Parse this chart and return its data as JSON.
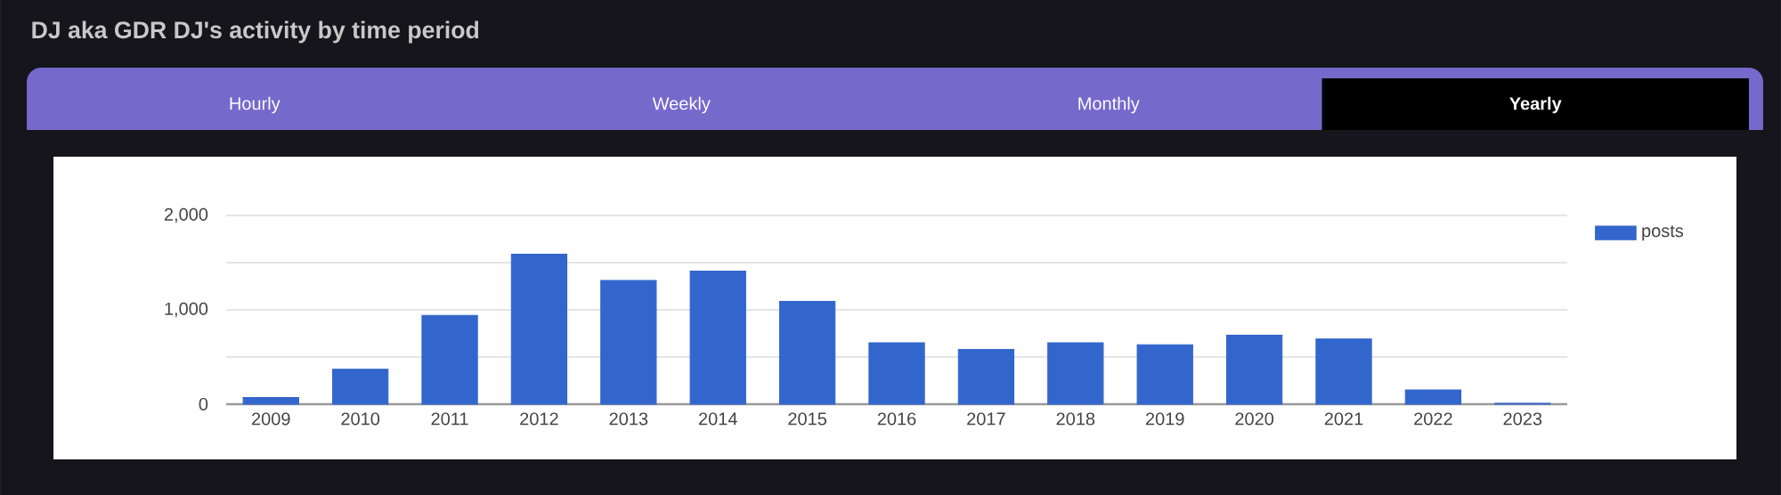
{
  "chart_data": {
    "type": "bar",
    "title": "DJ aka GDR DJ's activity by time period",
    "annotations": [
      "Hourly",
      "Weekly",
      "Monthly",
      "Yearly"
    ],
    "categories": [
      "2009",
      "2010",
      "2011",
      "2012",
      "2013",
      "2014",
      "2015",
      "2016",
      "2017",
      "2018",
      "2019",
      "2020",
      "2021",
      "2022",
      "2023"
    ],
    "series": [
      {
        "name": "posts",
        "color": "#3366cc",
        "values": [
          70,
          370,
          940,
          1590,
          1310,
          1410,
          1090,
          650,
          580,
          650,
          630,
          730,
          690,
          150,
          10
        ]
      }
    ],
    "ylim": [
      0,
      2000
    ],
    "yticks": [
      0,
      {
        "value": 500,
        "label": null
      },
      {
        "value": 1000,
        "label": "1,000"
      },
      {
        "value": 1500,
        "label": null
      },
      {
        "value": 2000,
        "label": "2,000"
      }
    ],
    "grid": "y",
    "legend": "top right"
  }
}
